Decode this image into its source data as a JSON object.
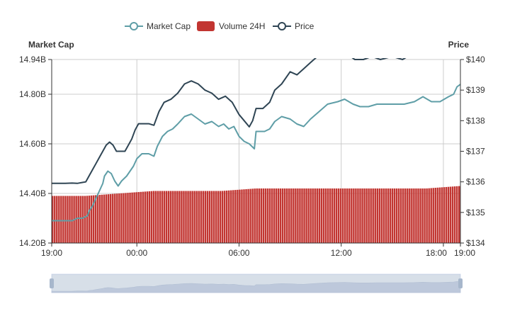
{
  "legend": {
    "market_cap": "Market Cap",
    "volume": "Volume 24H",
    "price": "Price"
  },
  "colors": {
    "market_cap": "#5f9ea7",
    "volume": "#c23531",
    "price": "#2f4554",
    "grid": "#cccccc",
    "axis": "#333333",
    "slider_fill": "#d3dbe8",
    "slider_handle": "#a7b7cc"
  },
  "chart_data": {
    "type": "line",
    "title": "",
    "legend_position": "top-center",
    "grid": true,
    "left_axis": {
      "name": "Market Cap",
      "min": 14.2,
      "max": 14.94,
      "ticks": [
        14.2,
        14.4,
        14.6,
        14.8,
        14.94
      ],
      "tick_labels": [
        "14.20B",
        "14.40B",
        "14.60B",
        "14.80B",
        "14.94B"
      ],
      "unit": "billions USD"
    },
    "right_axis": {
      "name": "Price",
      "min": 134,
      "max": 140,
      "ticks": [
        134,
        135,
        136,
        137,
        138,
        139,
        140
      ],
      "tick_labels": [
        "$134",
        "$135",
        "$136",
        "$137",
        "$138",
        "$139",
        "$140"
      ]
    },
    "x_axis": {
      "min_hours": 0,
      "max_hours": 24,
      "ticks": [
        0,
        5,
        11,
        17,
        23,
        24
      ],
      "tick_labels": [
        "19:00",
        "00:00",
        "06:00",
        "12:00",
        "18:00",
        "19:00"
      ]
    },
    "series": [
      {
        "name": "Market Cap",
        "axis": "left",
        "points": [
          [
            0,
            14.29
          ],
          [
            0.3,
            14.29
          ],
          [
            0.6,
            14.29
          ],
          [
            0.9,
            14.29
          ],
          [
            1.2,
            14.29
          ],
          [
            1.5,
            14.3
          ],
          [
            1.8,
            14.3
          ],
          [
            2.1,
            14.31
          ],
          [
            2.2,
            14.33
          ],
          [
            2.4,
            14.35
          ],
          [
            2.6,
            14.38
          ],
          [
            2.8,
            14.41
          ],
          [
            3.0,
            14.44
          ],
          [
            3.1,
            14.47
          ],
          [
            3.3,
            14.49
          ],
          [
            3.5,
            14.48
          ],
          [
            3.7,
            14.45
          ],
          [
            3.9,
            14.43
          ],
          [
            4.1,
            14.45
          ],
          [
            4.4,
            14.47
          ],
          [
            4.6,
            14.49
          ],
          [
            4.8,
            14.51
          ],
          [
            5.0,
            14.54
          ],
          [
            5.3,
            14.56
          ],
          [
            5.7,
            14.56
          ],
          [
            6.0,
            14.55
          ],
          [
            6.2,
            14.59
          ],
          [
            6.5,
            14.63
          ],
          [
            6.8,
            14.65
          ],
          [
            7.1,
            14.66
          ],
          [
            7.4,
            14.68
          ],
          [
            7.8,
            14.71
          ],
          [
            8.2,
            14.72
          ],
          [
            8.6,
            14.7
          ],
          [
            9.0,
            14.68
          ],
          [
            9.4,
            14.69
          ],
          [
            9.8,
            14.67
          ],
          [
            10.1,
            14.68
          ],
          [
            10.4,
            14.66
          ],
          [
            10.7,
            14.67
          ],
          [
            11.0,
            14.63
          ],
          [
            11.3,
            14.61
          ],
          [
            11.6,
            14.6
          ],
          [
            11.9,
            14.58
          ],
          [
            12.0,
            14.65
          ],
          [
            12.5,
            14.65
          ],
          [
            12.8,
            14.66
          ],
          [
            13.1,
            14.69
          ],
          [
            13.5,
            14.71
          ],
          [
            14.0,
            14.7
          ],
          [
            14.4,
            14.68
          ],
          [
            14.8,
            14.67
          ],
          [
            15.2,
            14.7
          ],
          [
            15.7,
            14.73
          ],
          [
            16.2,
            14.76
          ],
          [
            16.8,
            14.77
          ],
          [
            17.2,
            14.78
          ],
          [
            17.7,
            14.76
          ],
          [
            18.1,
            14.75
          ],
          [
            18.6,
            14.75
          ],
          [
            19.1,
            14.76
          ],
          [
            19.7,
            14.76
          ],
          [
            20.2,
            14.76
          ],
          [
            20.7,
            14.76
          ],
          [
            21.3,
            14.77
          ],
          [
            21.8,
            14.79
          ],
          [
            22.3,
            14.77
          ],
          [
            22.8,
            14.77
          ],
          [
            23.3,
            14.79
          ],
          [
            23.6,
            14.8
          ],
          [
            23.8,
            14.83
          ],
          [
            24,
            14.84
          ]
        ]
      },
      {
        "name": "Price",
        "axis": "right",
        "points": [
          [
            0,
            135.95
          ],
          [
            0.4,
            135.95
          ],
          [
            0.8,
            135.95
          ],
          [
            1.2,
            135.96
          ],
          [
            1.5,
            135.95
          ],
          [
            1.8,
            135.98
          ],
          [
            2.0,
            136.0
          ],
          [
            2.2,
            136.2
          ],
          [
            2.4,
            136.4
          ],
          [
            2.6,
            136.6
          ],
          [
            2.8,
            136.8
          ],
          [
            3.0,
            137.0
          ],
          [
            3.2,
            137.2
          ],
          [
            3.4,
            137.3
          ],
          [
            3.6,
            137.2
          ],
          [
            3.8,
            137.0
          ],
          [
            4.0,
            137.0
          ],
          [
            4.3,
            137.0
          ],
          [
            4.5,
            137.2
          ],
          [
            4.7,
            137.4
          ],
          [
            4.9,
            137.7
          ],
          [
            5.1,
            137.9
          ],
          [
            5.4,
            137.9
          ],
          [
            5.7,
            137.9
          ],
          [
            6.0,
            137.85
          ],
          [
            6.3,
            138.3
          ],
          [
            6.6,
            138.6
          ],
          [
            7.0,
            138.7
          ],
          [
            7.4,
            138.9
          ],
          [
            7.8,
            139.2
          ],
          [
            8.2,
            139.3
          ],
          [
            8.6,
            139.2
          ],
          [
            9.0,
            139.0
          ],
          [
            9.4,
            138.9
          ],
          [
            9.8,
            138.7
          ],
          [
            10.2,
            138.8
          ],
          [
            10.6,
            138.6
          ],
          [
            11.0,
            138.2
          ],
          [
            11.3,
            138.0
          ],
          [
            11.6,
            137.8
          ],
          [
            11.8,
            138.0
          ],
          [
            12.0,
            138.4
          ],
          [
            12.4,
            138.4
          ],
          [
            12.8,
            138.6
          ],
          [
            13.1,
            139.0
          ],
          [
            13.5,
            139.2
          ],
          [
            14.0,
            139.6
          ],
          [
            14.4,
            139.5
          ],
          [
            14.8,
            139.7
          ],
          [
            15.2,
            139.9
          ],
          [
            15.6,
            140.1
          ],
          [
            16.2,
            140.2
          ],
          [
            16.8,
            140.1
          ],
          [
            17.3,
            140.2
          ],
          [
            17.8,
            140.0
          ],
          [
            18.3,
            140.0
          ],
          [
            18.8,
            140.1
          ],
          [
            19.3,
            140.0
          ],
          [
            20.0,
            140.1
          ],
          [
            20.6,
            140.0
          ],
          [
            21.2,
            140.2
          ],
          [
            21.8,
            140.1
          ],
          [
            22.4,
            140.1
          ],
          [
            23.0,
            140.1
          ],
          [
            23.6,
            140.2
          ],
          [
            24,
            140.3
          ]
        ]
      },
      {
        "name": "Volume 24H",
        "axis": "left",
        "type": "bar",
        "baseline": 14.2,
        "points": [
          [
            0,
            14.39
          ],
          [
            2,
            14.39
          ],
          [
            4,
            14.4
          ],
          [
            6,
            14.41
          ],
          [
            8,
            14.41
          ],
          [
            10,
            14.41
          ],
          [
            12,
            14.42
          ],
          [
            14,
            14.42
          ],
          [
            16,
            14.42
          ],
          [
            18,
            14.42
          ],
          [
            20,
            14.42
          ],
          [
            22,
            14.42
          ],
          [
            24,
            14.43
          ]
        ]
      }
    ]
  }
}
